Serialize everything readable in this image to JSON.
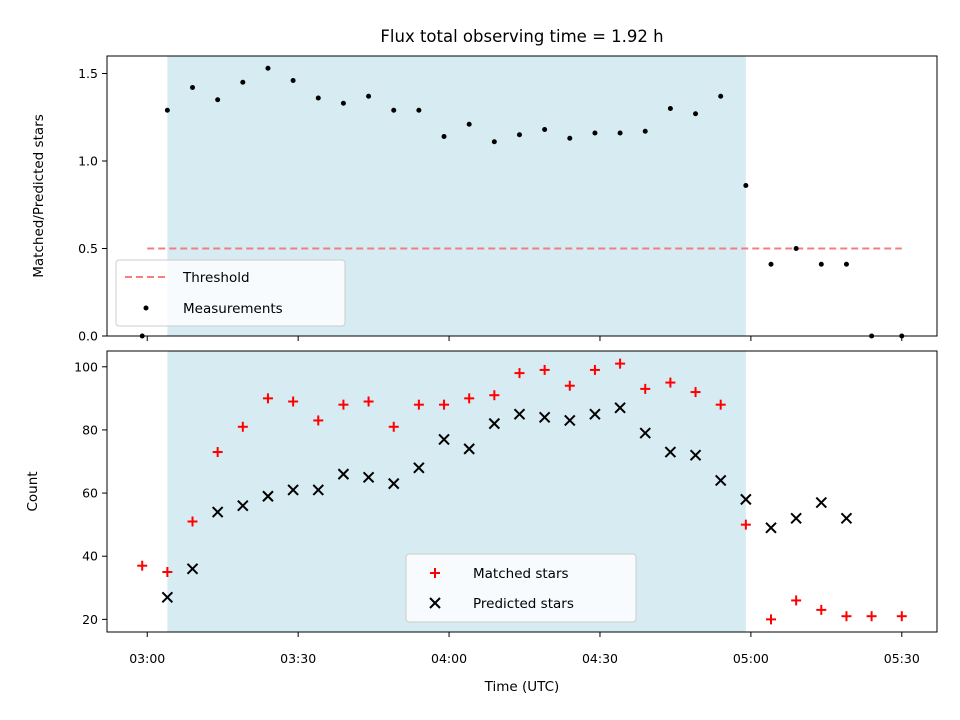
{
  "chart_data": [
    {
      "type": "scatter",
      "title": "Flux total observing time = 1.92 h",
      "ylabel": "Matched/Predicted stars",
      "xlabel": "",
      "ylim": [
        0,
        1.6
      ],
      "yticks": [
        "0.0",
        "0.5",
        "1.0",
        "1.5"
      ],
      "shaded_interval": [
        "03:04",
        "04:59"
      ],
      "shaded_color": "#add8e6",
      "threshold": {
        "name": "Threshold",
        "value": 0.5,
        "x_range": [
          "03:00",
          "05:30"
        ],
        "color": "#f08080"
      },
      "series": [
        {
          "name": "Measurements",
          "color": "#000000",
          "marker": "dot",
          "x": [
            "02:59",
            "03:04",
            "03:09",
            "03:14",
            "03:19",
            "03:24",
            "03:29",
            "03:34",
            "03:39",
            "03:44",
            "03:49",
            "03:54",
            "03:59",
            "04:04",
            "04:09",
            "04:14",
            "04:19",
            "04:24",
            "04:29",
            "04:34",
            "04:39",
            "04:44",
            "04:49",
            "04:54",
            "04:59",
            "05:04",
            "05:09",
            "05:14",
            "05:19",
            "05:24",
            "05:30"
          ],
          "y": [
            0.0,
            1.29,
            1.42,
            1.35,
            1.45,
            1.53,
            1.46,
            1.36,
            1.33,
            1.37,
            1.29,
            1.29,
            1.14,
            1.21,
            1.11,
            1.15,
            1.18,
            1.13,
            1.16,
            1.16,
            1.17,
            1.3,
            1.27,
            1.37,
            0.86,
            0.41,
            0.5,
            0.41,
            0.41,
            0.0,
            0.0
          ]
        }
      ],
      "legend": [
        "Threshold",
        "Measurements"
      ],
      "legend_position": "lower-left"
    },
    {
      "type": "scatter",
      "title": "",
      "ylabel": "Count",
      "xlabel": "Time (UTC)",
      "ylim": [
        16,
        105
      ],
      "yticks": [
        "20",
        "40",
        "60",
        "80",
        "100"
      ],
      "xticks": [
        "03:00",
        "03:30",
        "04:00",
        "04:30",
        "05:00",
        "05:30"
      ],
      "shaded_interval": [
        "03:04",
        "04:59"
      ],
      "shaded_color": "#add8e6",
      "series": [
        {
          "name": "Matched stars",
          "color": "#ff0000",
          "marker": "plus",
          "x": [
            "02:59",
            "03:04",
            "03:09",
            "03:14",
            "03:19",
            "03:24",
            "03:29",
            "03:34",
            "03:39",
            "03:44",
            "03:49",
            "03:54",
            "03:59",
            "04:04",
            "04:09",
            "04:14",
            "04:19",
            "04:24",
            "04:29",
            "04:34",
            "04:39",
            "04:44",
            "04:49",
            "04:54",
            "04:59",
            "05:04",
            "05:09",
            "05:14",
            "05:19",
            "05:24",
            "05:30"
          ],
          "y": [
            37,
            35,
            51,
            73,
            81,
            90,
            89,
            83,
            88,
            89,
            81,
            88,
            88,
            90,
            91,
            98,
            99,
            94,
            99,
            101,
            93,
            95,
            92,
            88,
            50,
            20,
            26,
            23,
            21,
            21,
            21
          ]
        },
        {
          "name": "Predicted stars",
          "color": "#000000",
          "marker": "x",
          "x": [
            "03:04",
            "03:09",
            "03:14",
            "03:19",
            "03:24",
            "03:29",
            "03:34",
            "03:39",
            "03:44",
            "03:49",
            "03:54",
            "03:59",
            "04:04",
            "04:09",
            "04:14",
            "04:19",
            "04:24",
            "04:29",
            "04:34",
            "04:39",
            "04:44",
            "04:49",
            "04:54",
            "04:59",
            "05:04",
            "05:09",
            "05:14",
            "05:19"
          ],
          "y": [
            27,
            36,
            54,
            56,
            59,
            61,
            61,
            66,
            65,
            63,
            68,
            77,
            74,
            82,
            85,
            84,
            83,
            85,
            87,
            79,
            73,
            72,
            64,
            58,
            49,
            52,
            57,
            52
          ]
        }
      ],
      "legend": [
        "Matched stars",
        "Predicted stars"
      ],
      "legend_position": "lower-center"
    }
  ]
}
